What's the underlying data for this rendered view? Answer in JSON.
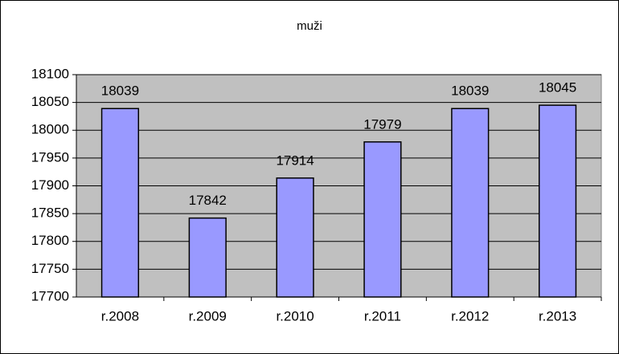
{
  "chart_data": {
    "type": "bar",
    "title": "muži",
    "categories": [
      "r.2008",
      "r.2009",
      "r.2010",
      "r.2011",
      "r.2012",
      "r.2013"
    ],
    "values": [
      18039,
      17842,
      17914,
      17979,
      18039,
      18045
    ],
    "color": "#9999ff",
    "ylim": [
      17700,
      18100
    ],
    "yticks": [
      17700,
      17750,
      17800,
      17850,
      17900,
      17950,
      18000,
      18050,
      18100
    ],
    "grid": true
  }
}
